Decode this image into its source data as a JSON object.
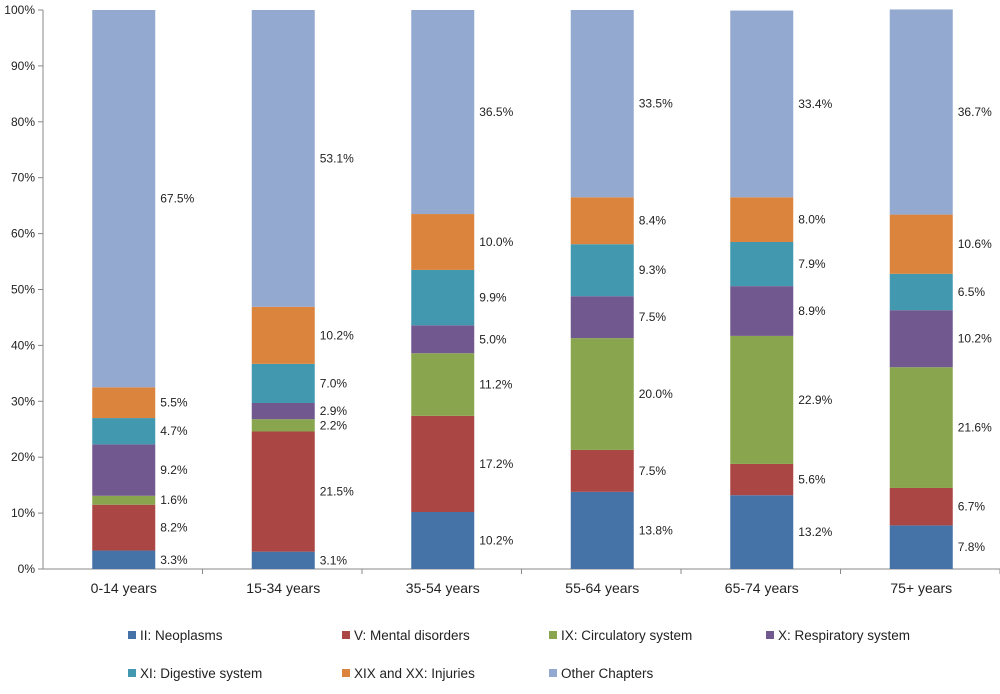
{
  "chart_data": {
    "type": "bar",
    "stacked": "percent",
    "categories": [
      "0-14 years",
      "15-34 years",
      "35-54 years",
      "55-64 years",
      "65-74 years",
      "75+ years"
    ],
    "ylim": [
      0,
      100
    ],
    "yticks": [
      "0%",
      "10%",
      "20%",
      "30%",
      "40%",
      "50%",
      "60%",
      "70%",
      "80%",
      "90%",
      "100%"
    ],
    "grid": false,
    "legend_position": "bottom",
    "series": [
      {
        "name": "II: Neoplasms",
        "color": "#4572A7",
        "values": [
          3.3,
          3.1,
          10.2,
          13.8,
          13.2,
          7.8
        ]
      },
      {
        "name": "V: Mental disorders",
        "color": "#AA4643",
        "values": [
          8.2,
          21.5,
          17.2,
          7.5,
          5.6,
          6.7
        ]
      },
      {
        "name": "IX: Circulatory system",
        "color": "#89A54E",
        "values": [
          1.6,
          2.2,
          11.2,
          20.0,
          22.9,
          21.6
        ]
      },
      {
        "name": "X: Respiratory system",
        "color": "#71588F",
        "values": [
          9.2,
          2.9,
          5.0,
          7.5,
          8.9,
          10.2
        ]
      },
      {
        "name": "XI: Digestive system",
        "color": "#4198AF",
        "values": [
          4.7,
          7.0,
          9.9,
          9.3,
          7.9,
          6.5
        ]
      },
      {
        "name": "XIX and XX: Injuries",
        "color": "#DB843D",
        "values": [
          5.5,
          10.2,
          10.0,
          8.4,
          8.0,
          10.6
        ]
      },
      {
        "name": "Other Chapters",
        "color": "#93A9CF",
        "values": [
          67.5,
          53.1,
          36.5,
          33.5,
          33.4,
          36.7
        ]
      }
    ]
  }
}
